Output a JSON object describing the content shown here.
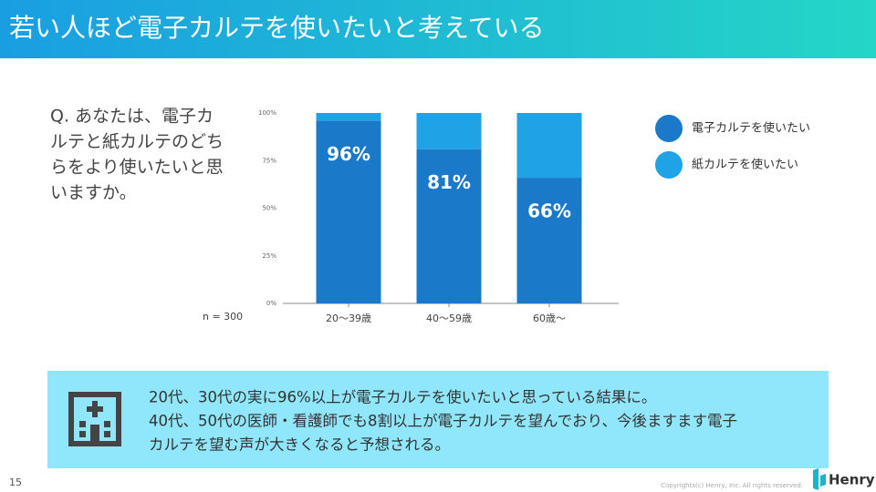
{
  "title": "若い人ほど電子カルテを使いたいと考えている",
  "question": {
    "lines": [
      "Q. あなたは、電子カ",
      "ルテと紙カルテのどち",
      "らをより使いたいと思",
      "いますか。"
    ]
  },
  "chart_data": {
    "type": "bar",
    "stacked": true,
    "categories": [
      "20〜39歳",
      "40〜59歳",
      "60歳〜"
    ],
    "series": [
      {
        "name": "電子カルテを使いたい",
        "color": "#1b79c9",
        "values": [
          96,
          81,
          66
        ],
        "value_labels": [
          "96%",
          "81%",
          "66%"
        ]
      },
      {
        "name": "紙カルテを使いたい",
        "color": "#1fa3e6",
        "values": [
          4,
          19,
          34
        ]
      }
    ],
    "ylim": [
      0,
      100
    ],
    "yticks": [
      {
        "value": 0,
        "label": "0%"
      },
      {
        "value": 25,
        "label": "25%"
      },
      {
        "value": 50,
        "label": "50%"
      },
      {
        "value": 75,
        "label": "75%"
      },
      {
        "value": 100,
        "label": "100%"
      }
    ],
    "grid": false,
    "legend": "right",
    "annotation": "n = 300"
  },
  "note": {
    "lines": [
      "20代、30代の実に96%以上が電子カルテを使いたいと思っている結果に。",
      "40代、50代の医師・看護師でも8割以上が電子カルテを望んでおり、今後ますます電子",
      "カルテを望む声が大きくなると予想される。"
    ]
  },
  "page_number": "15",
  "copyright": "Copyrights(c) Henry, Inc. All rights reserved.",
  "logo": "Henry"
}
